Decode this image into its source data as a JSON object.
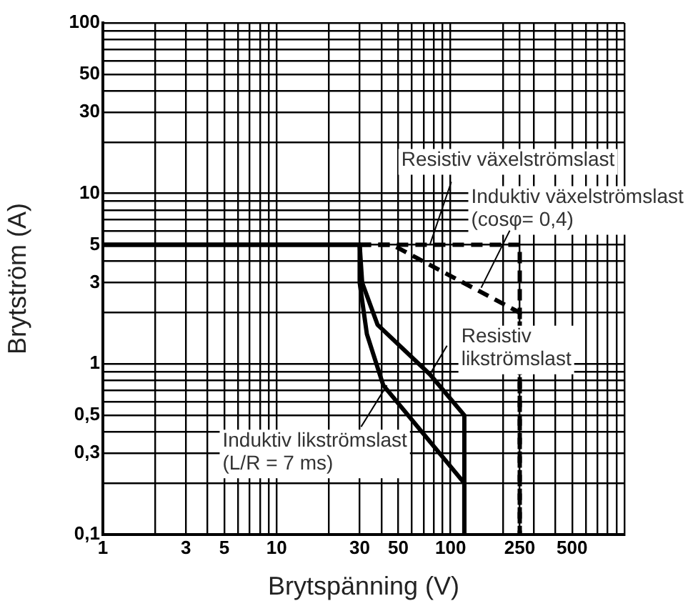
{
  "chart_data": {
    "type": "line",
    "xlabel": "Brytspänning (V)",
    "ylabel": "Brytström (A)",
    "log": "xy",
    "grid": true,
    "legend": false,
    "marker": "none",
    "xlim": [
      1,
      1000
    ],
    "ylim": [
      0.1,
      100
    ],
    "xticks": [
      1,
      {
        "value": 2,
        "label": null
      },
      3,
      {
        "value": 4,
        "label": null
      },
      5,
      {
        "value": 6,
        "label": null
      },
      {
        "value": 7,
        "label": null
      },
      {
        "value": 8,
        "label": null
      },
      {
        "value": 9,
        "label": null
      },
      10,
      {
        "value": 20,
        "label": null
      },
      30,
      {
        "value": 40,
        "label": null
      },
      50,
      {
        "value": 60,
        "label": null
      },
      {
        "value": 70,
        "label": null
      },
      {
        "value": 80,
        "label": null
      },
      {
        "value": 90,
        "label": null
      },
      100,
      {
        "value": 200,
        "label": null
      },
      250,
      {
        "value": 300,
        "label": null
      },
      {
        "value": 400,
        "label": null
      },
      500,
      {
        "value": 600,
        "label": null
      },
      {
        "value": 700,
        "label": null
      },
      {
        "value": 800,
        "label": null
      },
      {
        "value": 900,
        "label": null
      },
      {
        "value": 1000,
        "label": null
      }
    ],
    "yticks": [
      {
        "value": 0.1,
        "label": "0,1"
      },
      {
        "value": 0.2,
        "label": null
      },
      {
        "value": 0.3,
        "label": "0,3"
      },
      {
        "value": 0.4,
        "label": null
      },
      {
        "value": 0.5,
        "label": "0,5"
      },
      {
        "value": 0.6,
        "label": null
      },
      {
        "value": 0.7,
        "label": null
      },
      {
        "value": 0.8,
        "label": null
      },
      {
        "value": 0.9,
        "label": null
      },
      1,
      {
        "value": 2,
        "label": null
      },
      3,
      {
        "value": 4,
        "label": null
      },
      5,
      {
        "value": 6,
        "label": null
      },
      {
        "value": 7,
        "label": null
      },
      {
        "value": 8,
        "label": null
      },
      {
        "value": 9,
        "label": null
      },
      10,
      {
        "value": 20,
        "label": null
      },
      30,
      {
        "value": 40,
        "label": null
      },
      50,
      {
        "value": 60,
        "label": null
      },
      {
        "value": 70,
        "label": null
      },
      {
        "value": 80,
        "label": null
      },
      {
        "value": 90,
        "label": null
      },
      100
    ],
    "series": [
      {
        "color": "#000000",
        "line_style": "dashed",
        "x": [
          30,
          250,
          250
        ],
        "values": [
          5,
          5,
          0.1
        ]
      },
      {
        "color": "#000000",
        "line_style": "dashed",
        "x": [
          30,
          46,
          250,
          250
        ],
        "values": [
          5,
          5,
          2,
          0.1
        ]
      },
      {
        "color": "#000000",
        "line_style": "solid",
        "x": [
          1,
          30,
          31,
          38,
          76,
          120,
          120
        ],
        "values": [
          5,
          5,
          3,
          1.7,
          0.87,
          0.5,
          0.1
        ]
      },
      {
        "color": "#000000",
        "line_style": "solid",
        "x": [
          1,
          30,
          30,
          33,
          41,
          120,
          120
        ],
        "values": [
          5,
          5,
          3,
          1.5,
          0.75,
          0.2,
          0.1
        ]
      }
    ],
    "annotations": [
      {
        "text": "Resistiv växelströmslast",
        "x": 76,
        "y": 5
      },
      {
        "text": "Induktiv växelströmslast\n(cosφ= 0,4)",
        "x": 150,
        "y": 2.8
      },
      {
        "text": "Resistiv\nlikströmslast",
        "x": 76,
        "y": 0.87
      },
      {
        "text": "Induktiv likströmslast\n(L/R = 7 ms)",
        "x": 43,
        "y": 0.75
      }
    ]
  }
}
